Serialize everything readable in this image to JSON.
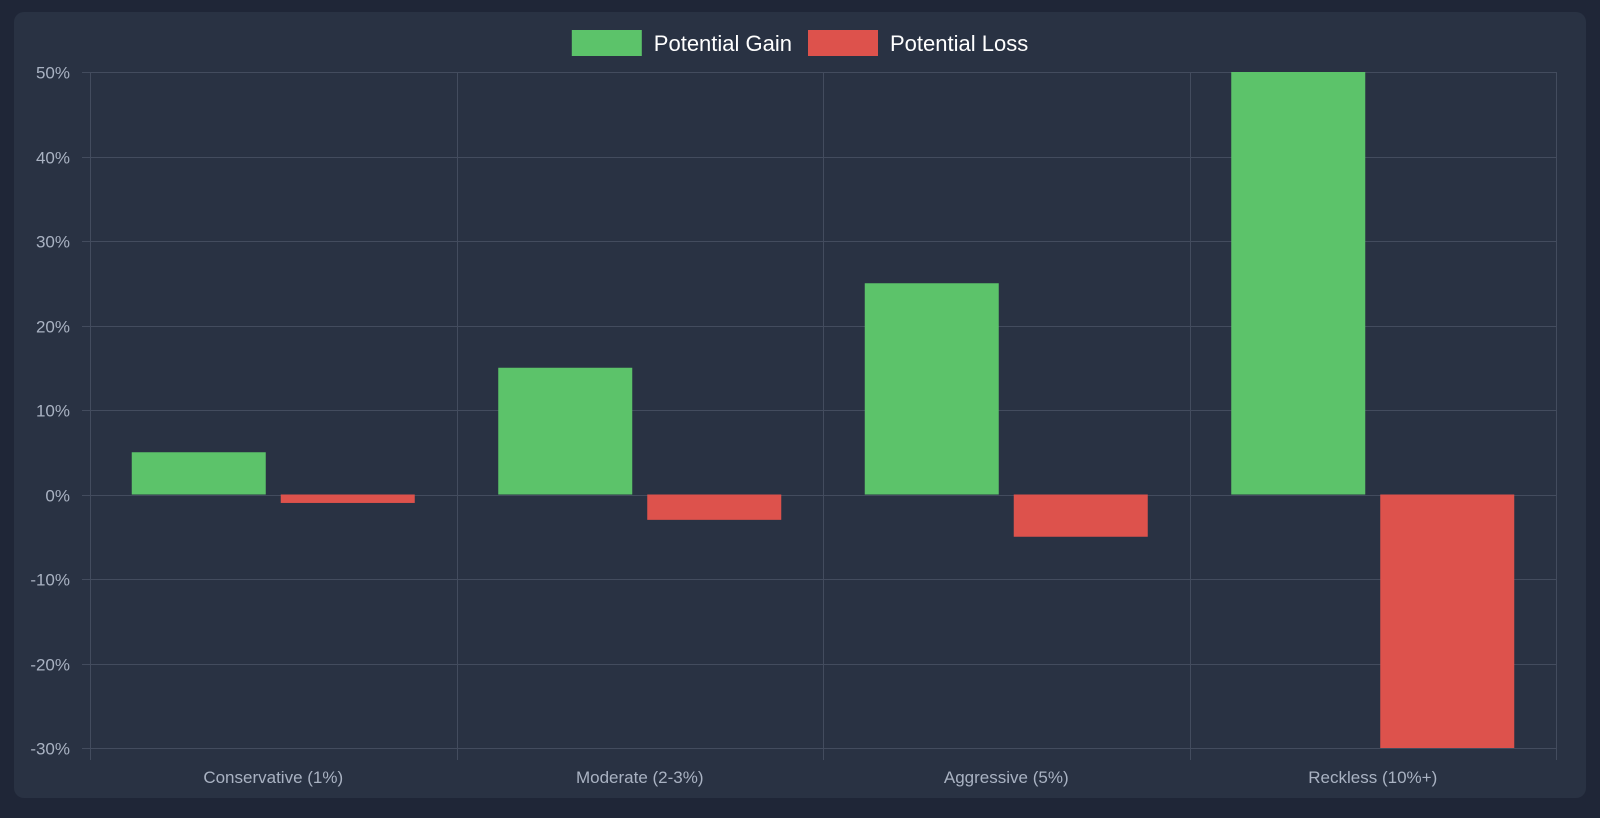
{
  "chart_data": {
    "type": "bar",
    "categories": [
      "Conservative (1%)",
      "Moderate (2-3%)",
      "Aggressive (5%)",
      "Reckless (10%+)"
    ],
    "series": [
      {
        "name": "Potential Gain",
        "values": [
          5,
          15,
          25,
          50
        ],
        "color": "#5cc36a"
      },
      {
        "name": "Potential Loss",
        "values": [
          -1,
          -3,
          -5,
          -30
        ],
        "color": "#dd524c"
      }
    ],
    "ylim": [
      -30,
      50
    ],
    "yticks": [
      50,
      40,
      30,
      20,
      10,
      0,
      -10,
      -20,
      -30
    ],
    "ytick_labels": [
      "50%",
      "40%",
      "30%",
      "20%",
      "10%",
      "0%",
      "-10%",
      "-20%",
      "-30%"
    ],
    "title": "",
    "xlabel": "",
    "ylabel": "",
    "grid": true,
    "legend_position": "top-center"
  }
}
